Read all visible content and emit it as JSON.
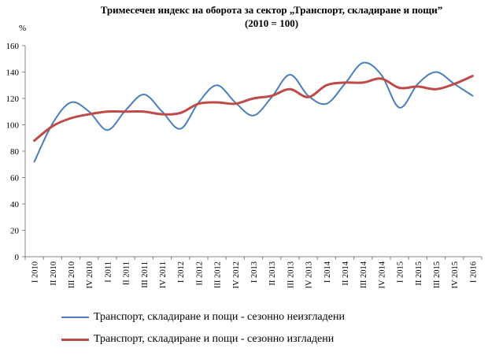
{
  "chart_data": {
    "type": "line",
    "title": "Тримесечен индекс на оборота за сектор „Транспорт, складиране и пощи”",
    "subtitle": "(2010 = 100)",
    "ylabel": "%",
    "ylim": [
      0,
      160
    ],
    "yticks": [
      0,
      20,
      40,
      60,
      80,
      100,
      120,
      140,
      160
    ],
    "grid": false,
    "legend_position": "bottom",
    "categories": [
      "I 2010",
      "II 2010",
      "III 2010",
      "IV 2010",
      "I 2011",
      "II 2011",
      "III 2011",
      "IV 2011",
      "I 2012",
      "II 2012",
      "III 2012",
      "IV 2012",
      "I 2013",
      "II 2013",
      "III 2013",
      "IV 2013",
      "I 2014",
      "II 2014",
      "III 2014",
      "IV 2014",
      "I 2015",
      "II 2015",
      "III 2015",
      "IV 2015",
      "I 2016"
    ],
    "series": [
      {
        "name": "Транспорт, складиране и пощи - сезонно неизгладени",
        "color": "#4a7ebb",
        "values": [
          72,
          101,
          117,
          110,
          96,
          111,
          123,
          110,
          97,
          117,
          130,
          117,
          107,
          121,
          138,
          122,
          116,
          131,
          147,
          138,
          113,
          131,
          140,
          131,
          122
        ]
      },
      {
        "name": "Транспорт, складиране и пощи - сезонно изгладени",
        "color": "#be4b48",
        "values": [
          88,
          99,
          105,
          108,
          110,
          110,
          110,
          108,
          109,
          116,
          117,
          116,
          120,
          122,
          127,
          121,
          130,
          132,
          132,
          135,
          128,
          129,
          127,
          131,
          137
        ]
      }
    ]
  }
}
